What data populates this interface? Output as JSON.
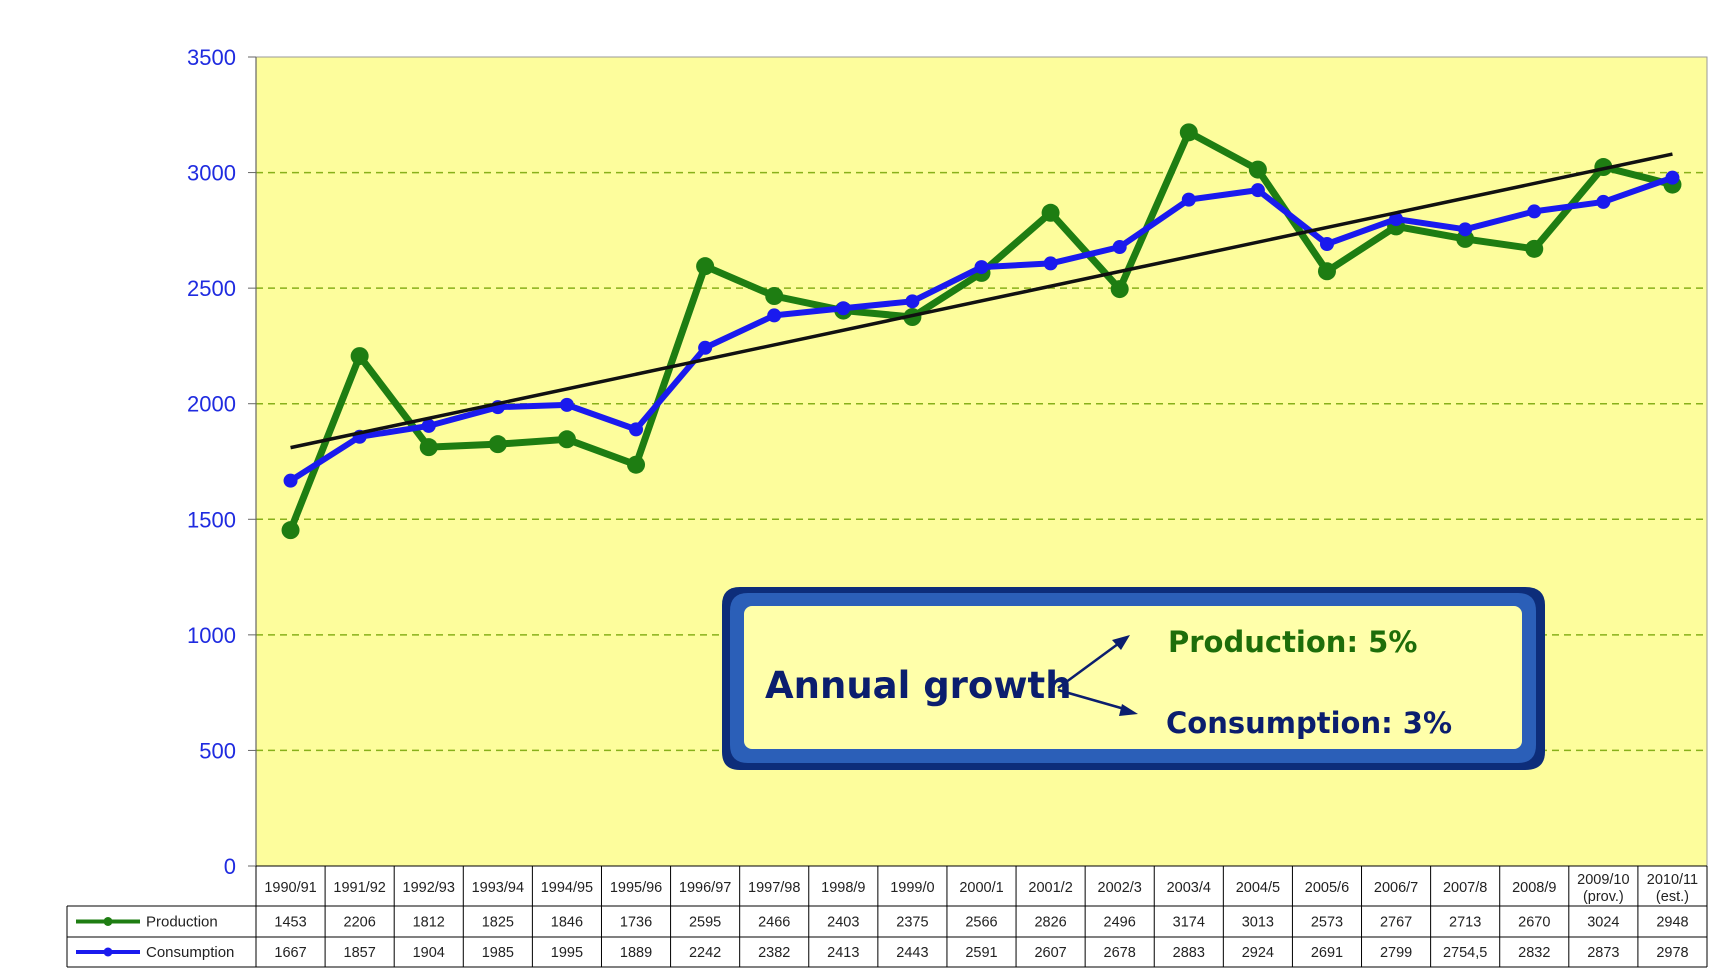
{
  "chart_data": {
    "type": "line",
    "ylim": [
      0,
      3500
    ],
    "yticks": [
      0,
      500,
      1000,
      1500,
      2000,
      2500,
      3000,
      3500
    ],
    "grid": true,
    "categories": [
      {
        "line1": "1990/91",
        "line2": ""
      },
      {
        "line1": "1991/92",
        "line2": ""
      },
      {
        "line1": "1992/93",
        "line2": ""
      },
      {
        "line1": "1993/94",
        "line2": ""
      },
      {
        "line1": "1994/95",
        "line2": ""
      },
      {
        "line1": "1995/96",
        "line2": ""
      },
      {
        "line1": "1996/97",
        "line2": ""
      },
      {
        "line1": "1997/98",
        "line2": ""
      },
      {
        "line1": "1998/9",
        "line2": ""
      },
      {
        "line1": "1999/0",
        "line2": ""
      },
      {
        "line1": "2000/1",
        "line2": ""
      },
      {
        "line1": "2001/2",
        "line2": ""
      },
      {
        "line1": "2002/3",
        "line2": ""
      },
      {
        "line1": "2003/4",
        "line2": ""
      },
      {
        "line1": "2004/5",
        "line2": ""
      },
      {
        "line1": "2005/6",
        "line2": ""
      },
      {
        "line1": "2006/7",
        "line2": ""
      },
      {
        "line1": "2007/8",
        "line2": ""
      },
      {
        "line1": "2008/9",
        "line2": ""
      },
      {
        "line1": "2009/10",
        "line2": "(prov.)"
      },
      {
        "line1": "2010/11",
        "line2": "(est.)"
      }
    ],
    "series": [
      {
        "name": "Production",
        "color": "#1e7d12",
        "values": [
          1453,
          2206,
          1812,
          1825,
          1846,
          1736,
          2595,
          2466,
          2403,
          2375,
          2566,
          2826,
          2496,
          3174,
          3013,
          2573,
          2767,
          2713,
          2670,
          3024,
          2948
        ],
        "labels": [
          "1453",
          "2206",
          "1812",
          "1825",
          "1846",
          "1736",
          "2595",
          "2466",
          "2403",
          "2375",
          "2566",
          "2826",
          "2496",
          "3174",
          "3013",
          "2573",
          "2767",
          "2713",
          "2670",
          "3024",
          "2948"
        ]
      },
      {
        "name": "Consumption",
        "color": "#1a1aee",
        "values": [
          1667,
          1857,
          1904,
          1985,
          1995,
          1889,
          2242,
          2382,
          2413,
          2443,
          2591,
          2607,
          2678,
          2883,
          2924,
          2691,
          2799,
          2754.5,
          2832,
          2873,
          2978
        ],
        "labels": [
          "1667",
          "1857",
          "1904",
          "1985",
          "1995",
          "1889",
          "2242",
          "2382",
          "2413",
          "2443",
          "2591",
          "2607",
          "2678",
          "2883",
          "2924",
          "2691",
          "2799",
          "2754,5",
          "2832",
          "2873",
          "2978"
        ]
      }
    ],
    "trendline": {
      "start": 1810,
      "end": 3080,
      "color": "#111111"
    },
    "plot_bg": "#fdfd9c",
    "grid_color": "#88b01a",
    "annotation": {
      "title": "Annual growth",
      "production": "Production:  5%",
      "consumption": "Consumption: 3%"
    }
  }
}
